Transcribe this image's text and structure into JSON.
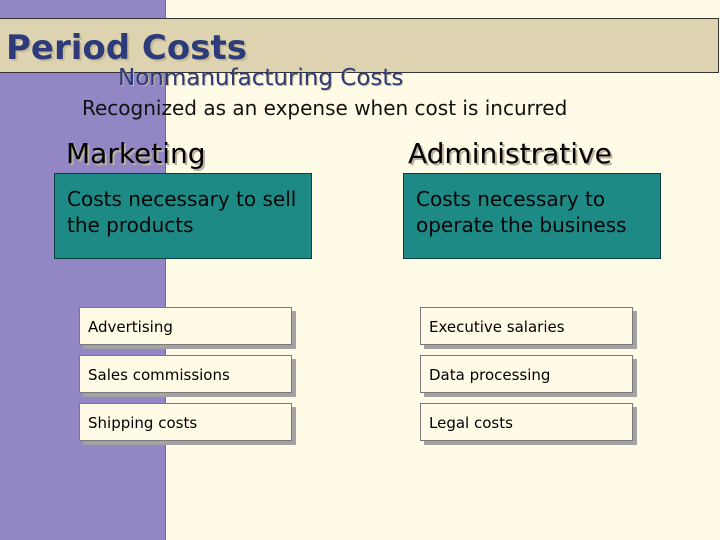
{
  "slide": {
    "title": "Period Costs",
    "subtitle": "Nonmanufacturing Costs",
    "definition": "Recognized as an expense when cost is incurred"
  },
  "columns": [
    {
      "heading": "Marketing",
      "description": "Costs necessary to sell the products",
      "items": [
        "Advertising",
        "Sales commissions",
        "Shipping costs"
      ]
    },
    {
      "heading": "Administrative",
      "description": "Costs necessary to operate the business",
      "items": [
        "Executive salaries",
        "Data processing",
        "Legal costs"
      ]
    }
  ],
  "colors": {
    "sidebar": "#9287c4",
    "title_bar": "#ddd3b0",
    "title_text": "#2d3b7a",
    "teal_box": "#1e8a86",
    "background": "#fffbe6"
  }
}
